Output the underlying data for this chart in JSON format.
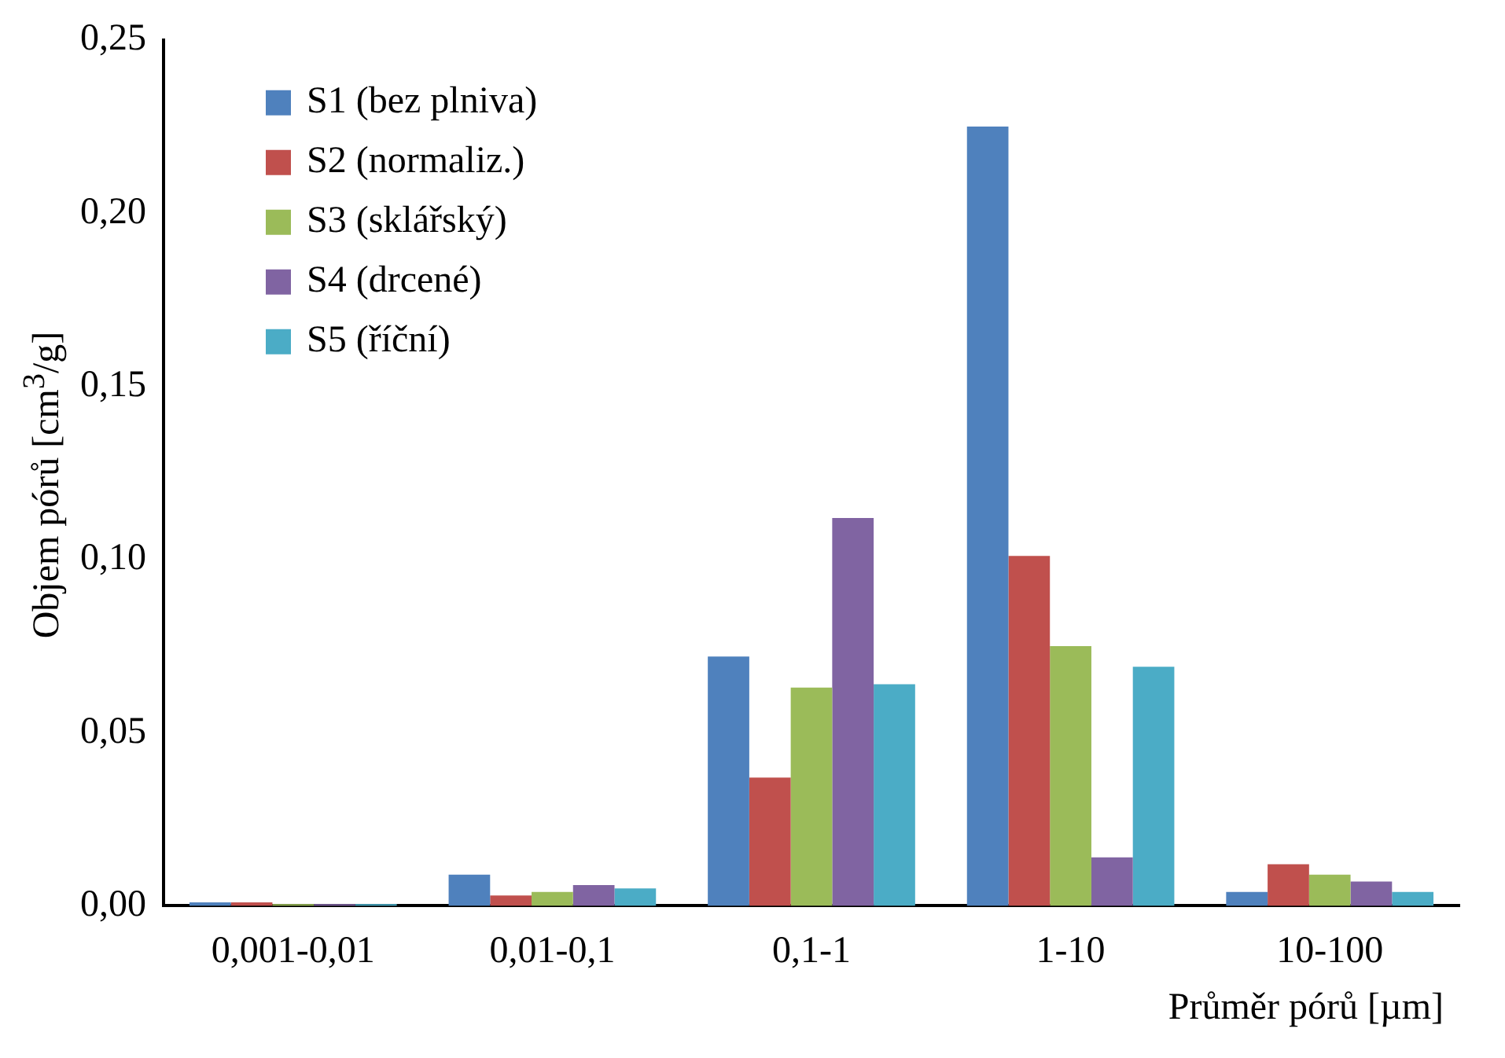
{
  "chart_data": {
    "type": "bar",
    "xlabel": "Průměr pórů [µm]",
    "ylabel": "Objem pórů [cm$^{3}$/g]",
    "categories": [
      "0,001-0,01",
      "0,01-0,1",
      "0,1-1",
      "1-10",
      "10-100"
    ],
    "series": [
      {
        "name": "S1 (bez plniva)",
        "color": "#4f81bd",
        "values": [
          0.001,
          0.009,
          0.072,
          0.225,
          0.004
        ]
      },
      {
        "name": "S2 (normaliz.)",
        "color": "#c0504d",
        "values": [
          0.001,
          0.003,
          0.037,
          0.101,
          0.012
        ]
      },
      {
        "name": "S3 (sklářský)",
        "color": "#9bbb59",
        "values": [
          0.0005,
          0.004,
          0.063,
          0.075,
          0.009
        ]
      },
      {
        "name": "S4 (drcené)",
        "color": "#8064a2",
        "values": [
          0.0005,
          0.006,
          0.112,
          0.014,
          0.007
        ]
      },
      {
        "name": "S5 (říční)",
        "color": "#4bacc6",
        "values": [
          0.0005,
          0.005,
          0.064,
          0.069,
          0.004
        ]
      }
    ],
    "ylim": [
      0,
      0.25
    ],
    "yticks": [
      {
        "value": 0,
        "label": "0,00"
      },
      {
        "value": 0.05,
        "label": "0,05"
      },
      {
        "value": 0.1,
        "label": "0,10"
      },
      {
        "value": 0.15,
        "label": "0,15"
      },
      {
        "value": 0.2,
        "label": "0,20"
      },
      {
        "value": 0.25,
        "label": "0,25"
      }
    ],
    "grid": false,
    "legend": "top left"
  }
}
